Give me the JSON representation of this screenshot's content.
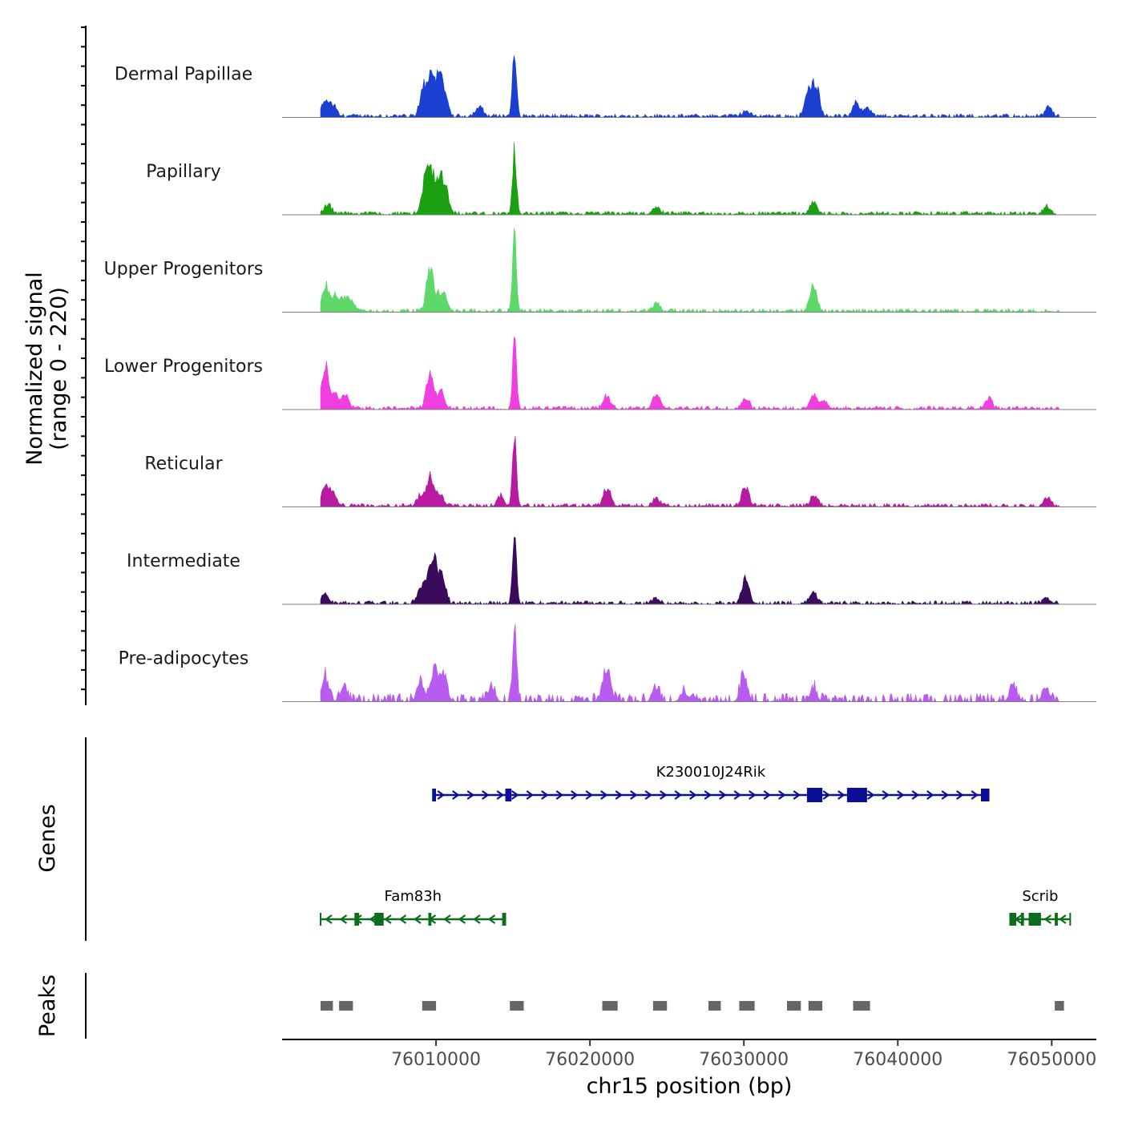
{
  "chart_data": {
    "type": "area",
    "title": "",
    "ylabel": "Normalized signal\n(range 0 - 220)",
    "yrange": [
      0,
      220
    ],
    "xlabel": "chr15 position (bp)",
    "xlim": [
      76000000,
      76052900
    ],
    "xticks": [
      76010000,
      76020000,
      76030000,
      76040000,
      76050000
    ],
    "xtick_labels": [
      "76010000",
      "76020000",
      "76030000",
      "76040000",
      "76050000"
    ],
    "signal_start": 76002500,
    "signal_end": 76050500,
    "tracks": [
      {
        "name": "Dermal Papillae",
        "color": "#1a3fd1",
        "peaks": [
          [
            76002800,
            40
          ],
          [
            76003300,
            30
          ],
          [
            76009200,
            80
          ],
          [
            76009700,
            110
          ],
          [
            76010200,
            85
          ],
          [
            76010500,
            60
          ],
          [
            76012800,
            30
          ],
          [
            76015100,
            205
          ],
          [
            76030100,
            15
          ],
          [
            76034200,
            70
          ],
          [
            76034700,
            90
          ],
          [
            76037300,
            40
          ],
          [
            76038000,
            25
          ],
          [
            76049800,
            25
          ]
        ]
      },
      {
        "name": "Papillary",
        "color": "#1aa011",
        "peaks": [
          [
            76003000,
            25
          ],
          [
            76009300,
            85
          ],
          [
            76009700,
            95
          ],
          [
            76010200,
            80
          ],
          [
            76010600,
            70
          ],
          [
            76015100,
            180
          ],
          [
            76024300,
            20
          ],
          [
            76034500,
            35
          ],
          [
            76049700,
            18
          ]
        ]
      },
      {
        "name": "Upper Progenitors",
        "color": "#5fd86a",
        "peaks": [
          [
            76002800,
            70
          ],
          [
            76003400,
            40
          ],
          [
            76004000,
            35
          ],
          [
            76004500,
            30
          ],
          [
            76009600,
            120
          ],
          [
            76010200,
            40
          ],
          [
            76010600,
            30
          ],
          [
            76015100,
            205
          ],
          [
            76024300,
            22
          ],
          [
            76034500,
            70
          ]
        ]
      },
      {
        "name": "Lower Progenitors",
        "color": "#f03ee0",
        "peaks": [
          [
            76002800,
            125
          ],
          [
            76003400,
            45
          ],
          [
            76004100,
            35
          ],
          [
            76009600,
            95
          ],
          [
            76010300,
            45
          ],
          [
            76015100,
            185
          ],
          [
            76021100,
            35
          ],
          [
            76024300,
            40
          ],
          [
            76030100,
            30
          ],
          [
            76034500,
            40
          ],
          [
            76035200,
            25
          ],
          [
            76045900,
            30
          ]
        ]
      },
      {
        "name": "Reticular",
        "color": "#b81aa0",
        "peaks": [
          [
            76002800,
            55
          ],
          [
            76003300,
            35
          ],
          [
            76009000,
            30
          ],
          [
            76009600,
            75
          ],
          [
            76010200,
            35
          ],
          [
            76014200,
            30
          ],
          [
            76015100,
            200
          ],
          [
            76021100,
            50
          ],
          [
            76024300,
            20
          ],
          [
            76030100,
            55
          ],
          [
            76034600,
            30
          ],
          [
            76049700,
            25
          ]
        ]
      },
      {
        "name": "Intermediate",
        "color": "#3a0a5c",
        "peaks": [
          [
            76002800,
            25
          ],
          [
            76009000,
            40
          ],
          [
            76009500,
            65
          ],
          [
            76009900,
            100
          ],
          [
            76010400,
            70
          ],
          [
            76015100,
            190
          ],
          [
            76024300,
            15
          ],
          [
            76030100,
            65
          ],
          [
            76034500,
            30
          ],
          [
            76049700,
            15
          ]
        ]
      },
      {
        "name": "Pre-adipocytes",
        "color": "#b85cf0",
        "peaks": [
          [
            76002800,
            65
          ],
          [
            76004000,
            40
          ],
          [
            76009000,
            60
          ],
          [
            76009900,
            100
          ],
          [
            76010500,
            70
          ],
          [
            76013600,
            40
          ],
          [
            76015100,
            205
          ],
          [
            76021100,
            95
          ],
          [
            76024300,
            40
          ],
          [
            76026100,
            25
          ],
          [
            76030000,
            70
          ],
          [
            76034500,
            35
          ],
          [
            76047500,
            40
          ],
          [
            76049600,
            35
          ]
        ]
      }
    ],
    "genes_label": "Genes",
    "genes": [
      {
        "name": "K230010J24Rik",
        "strand": "+",
        "color": "#0a0f96",
        "row": 1,
        "start": 76009800,
        "end": 76045900,
        "exons": [
          [
            76009800,
            76010000
          ],
          [
            76014500,
            76014900
          ],
          [
            76034100,
            76035100
          ],
          [
            76036700,
            76038000
          ],
          [
            76045400,
            76045900
          ]
        ]
      },
      {
        "name": "Fam83h",
        "strand": "-",
        "color": "#0c6e1c",
        "row": 2,
        "start": 76002500,
        "end": 76014500,
        "exons": [
          [
            76004700,
            76005000
          ],
          [
            76006000,
            76006600
          ],
          [
            76009500,
            76009700
          ],
          [
            76014300,
            76014500
          ]
        ]
      },
      {
        "name": "Scrib",
        "strand": "-",
        "color": "#0c6e1c",
        "row": 2,
        "start": 76047300,
        "end": 76051200,
        "exons": [
          [
            76047300,
            76047700
          ],
          [
            76048000,
            76048200
          ],
          [
            76048500,
            76049300
          ],
          [
            76050200,
            76050400
          ]
        ]
      }
    ],
    "peaks_label": "Peaks",
    "peak_regions": [
      [
        76002500,
        76003300
      ],
      [
        76003700,
        76004600
      ],
      [
        76009100,
        76010000
      ],
      [
        76014800,
        76015700
      ],
      [
        76020800,
        76021800
      ],
      [
        76024100,
        76025000
      ],
      [
        76027700,
        76028500
      ],
      [
        76029700,
        76030700
      ],
      [
        76032800,
        76033700
      ],
      [
        76034200,
        76035100
      ],
      [
        76037100,
        76038200
      ],
      [
        76050200,
        76050800
      ]
    ]
  }
}
